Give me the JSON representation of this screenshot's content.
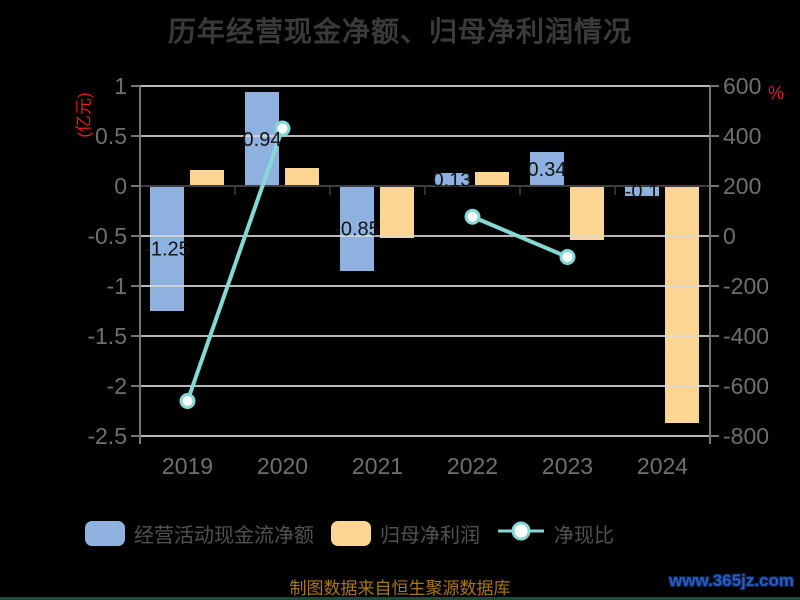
{
  "title": "历年经营现金净额、归母净利润情况",
  "chart_data": {
    "type": "bar",
    "categories": [
      "2019",
      "2020",
      "2021",
      "2022",
      "2023",
      "2024"
    ],
    "series": [
      {
        "name": "经营活动现金流净额",
        "type": "bar",
        "yaxis": "left",
        "color": "#8fb1e0",
        "values": [
          -1.25,
          0.94,
          -0.85,
          0.13,
          0.34,
          -0.1
        ],
        "data_labels": [
          "-1.25",
          "0.94",
          "-0.85",
          "0.13",
          "0.34",
          "-0.1"
        ]
      },
      {
        "name": "归母净利润",
        "type": "bar",
        "yaxis": "left",
        "color": "#fcd592",
        "values": [
          0.16,
          0.18,
          -0.52,
          0.14,
          -0.54,
          -2.37
        ]
      },
      {
        "name": "净现比",
        "type": "line",
        "yaxis": "right",
        "color": "#86d8d4",
        "marker": {
          "fill": "#ffffff",
          "stroke": "#86d8d4"
        },
        "values": [
          -660,
          430,
          null,
          77,
          -84,
          null
        ]
      }
    ],
    "left_axis": {
      "name": "(亿元)",
      "name_color": "#e31a1a",
      "min": -2.5,
      "max": 1,
      "tick_labels": [
        "1",
        "0.5",
        "0",
        "-0.5",
        "-1",
        "-1.5",
        "-2",
        "-2.5"
      ]
    },
    "right_axis": {
      "name": "%",
      "name_color": "#e31a1a",
      "min": -800,
      "max": 600,
      "tick_labels": [
        "600",
        "400",
        "200",
        "0",
        "-200",
        "-400",
        "-600",
        "-800"
      ]
    },
    "grid": true,
    "legend_position": "bottom",
    "background": "#000000"
  },
  "footer": {
    "source_note": "制图数据来自恒生聚源数据库",
    "watermark": "www.365jz.com"
  },
  "colors": {
    "bar_cash": "#8fb1e0",
    "bar_profit": "#fcd592",
    "line_ratio": "#86d8d4",
    "title_text": "#3a3a3a",
    "axis_text": "#6f6f6f",
    "legend_text": "#525252",
    "source_text": "#a9780f",
    "watermark_text": "#2c5cc5",
    "grid_line": "#d9d9d9",
    "zero_line": "#3f3f3f",
    "axis_line": "#757575",
    "data_label": "#141414"
  }
}
